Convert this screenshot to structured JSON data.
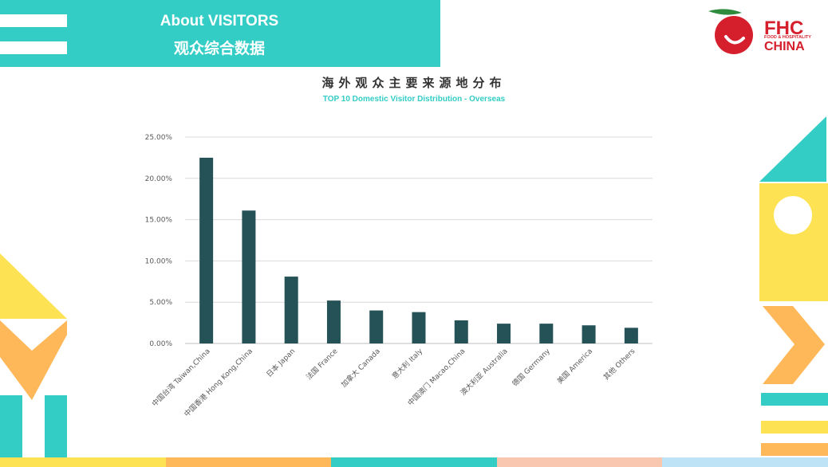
{
  "header": {
    "title_en": "About VISITORS",
    "title_cn": "观众综合数据"
  },
  "logo": {
    "main": "FHC",
    "sub": "FOOD & HOSPITALITY",
    "china": "CHINA"
  },
  "colors": {
    "teal": "#33cdc6",
    "yellow": "#fde253",
    "orange": "#feb859",
    "bar": "#245257",
    "brand_red": "#d61f2c"
  },
  "chart_data": {
    "type": "bar",
    "title": "海外观众主要来源地分布",
    "subtitle": "TOP 10 Domestic Visitor Distribution - Overseas",
    "categories": [
      "中国台湾 Taiwan,China",
      "中国香港 Hong Kong,China",
      "日本 Japan",
      "法国 France",
      "加拿大 Canada",
      "意大利 Italy",
      "中国澳门 Macao,China",
      "澳大利亚 Australia",
      "德国 Germany",
      "美国 America",
      "其他 Others"
    ],
    "values": [
      22.5,
      16.1,
      8.1,
      5.2,
      4.0,
      3.8,
      2.8,
      2.4,
      2.4,
      2.2,
      1.9
    ],
    "yticks": [
      "0.00%",
      "5.00%",
      "10.00%",
      "15.00%",
      "20.00%",
      "25.00%"
    ],
    "ylim": [
      0,
      25
    ],
    "grid": true,
    "xlabel": "",
    "ylabel": ""
  }
}
